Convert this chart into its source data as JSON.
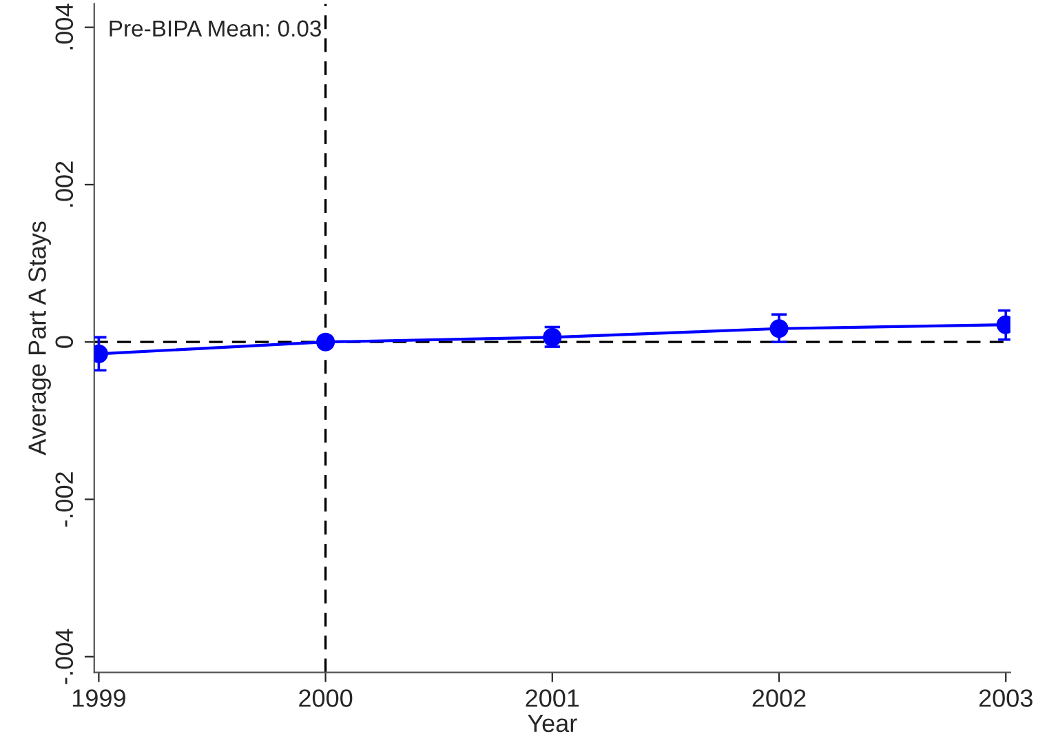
{
  "chart_data": {
    "type": "line",
    "xlabel": "Year",
    "ylabel": "Average Part A Stays",
    "x": [
      1999,
      2000,
      2001,
      2002,
      2003
    ],
    "series": [
      {
        "color": "#0000ff",
        "values": [
          -0.00015,
          0,
          6e-05,
          0.00017,
          0.00022
        ],
        "errors": [
          [
            -0.00036,
            6e-05
          ],
          null,
          [
            -6e-05,
            0.00019
          ],
          [
            0,
            0.00035
          ],
          [
            3e-05,
            0.0004
          ]
        ]
      }
    ],
    "marker": "circle",
    "line_style": "solid",
    "xlim": [
      1998.98,
      2003.02
    ],
    "xticks": [
      1999,
      2000,
      2001,
      2002,
      2003
    ],
    "ylim": [
      -0.0042,
      0.0043
    ],
    "yticks": [
      {
        "value": -0.004,
        "label": "-.004"
      },
      {
        "value": -0.002,
        "label": "-.002"
      },
      0,
      {
        "value": 0.002,
        "label": ".002"
      },
      {
        "value": 0.004,
        "label": ".004"
      }
    ],
    "ref_lines": [
      {
        "axis": "x",
        "value": 2000,
        "color": "#000000",
        "line_style": "dashed"
      },
      {
        "axis": "y",
        "value": 0,
        "color": "#000000",
        "line_style": "dashed"
      }
    ],
    "annotations": [
      "Pre-BIPA Mean: 0.03"
    ],
    "grid": false,
    "legend": false
  }
}
